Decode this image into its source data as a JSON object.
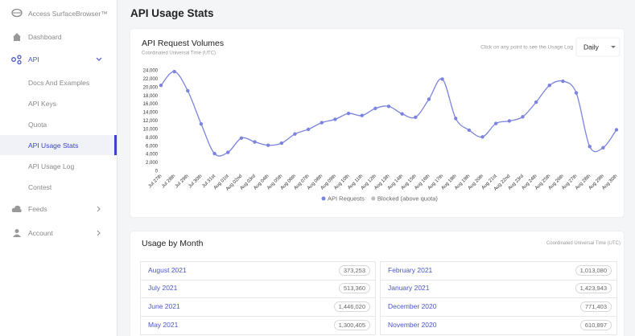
{
  "sidebar": {
    "brand": "Access SurfaceBrowser™",
    "items": [
      "Dashboard",
      "API",
      "Docs And Examples",
      "API Keys",
      "Quota",
      "API Usage Stats",
      "API Usage Log",
      "Contest",
      "Feeds",
      "Account"
    ]
  },
  "header": {
    "title": "API Usage Stats"
  },
  "controls": {
    "hint": "Click on any point to see the Usage Log",
    "select": "Daily"
  },
  "chart_data": {
    "type": "line",
    "title": "API Request Volumes",
    "subtitle": "Coordinated Universal Time (UTC)",
    "categories": [
      "Jul 27th",
      "Jul 28th",
      "Jul 29th",
      "Jul 30th",
      "Jul 31st",
      "Aug 01st",
      "Aug 02nd",
      "Aug 03rd",
      "Aug 04th",
      "Aug 05th",
      "Aug 06th",
      "Aug 07th",
      "Aug 08th",
      "Aug 09th",
      "Aug 10th",
      "Aug 11th",
      "Aug 12th",
      "Aug 13th",
      "Aug 14th",
      "Aug 15th",
      "Aug 16th",
      "Aug 17th",
      "Aug 18th",
      "Aug 19th",
      "Aug 20th",
      "Aug 21st",
      "Aug 22nd",
      "Aug 23rd",
      "Aug 24th",
      "Aug 25th",
      "Aug 26th",
      "Aug 27th",
      "Aug 28th",
      "Aug 29th",
      "Aug 30th"
    ],
    "series": [
      {
        "name": "API Requests",
        "color": "#7b83de",
        "values": [
          20500,
          23800,
          19200,
          11300,
          4200,
          4500,
          7900,
          7000,
          6200,
          6700,
          8900,
          10000,
          11600,
          12400,
          13800,
          13300,
          15000,
          15500,
          13700,
          12900,
          17200,
          22000,
          12600,
          9800,
          8200,
          11400,
          12000,
          13000,
          16500,
          20500,
          21500,
          18700,
          5900,
          5600,
          9900
        ]
      },
      {
        "name": "Blocked (above quota)",
        "color": "#bdbdbd"
      }
    ],
    "ylim": [
      0,
      24000
    ],
    "yticks": [
      0,
      {
        "value": 2000,
        "label": "2,000"
      },
      {
        "value": 4000,
        "label": "4,000"
      },
      {
        "value": 6000,
        "label": "6,000"
      },
      {
        "value": 8000,
        "label": "8,000"
      },
      {
        "value": 10000,
        "label": "10,000"
      },
      {
        "value": 12000,
        "label": "12,000"
      },
      {
        "value": 14000,
        "label": "14,000"
      },
      {
        "value": 16000,
        "label": "16,000"
      },
      {
        "value": 18000,
        "label": "18,000"
      },
      {
        "value": 20000,
        "label": "20,000"
      },
      {
        "value": 22000,
        "label": "22,000"
      },
      {
        "value": 24000,
        "label": "24,000"
      }
    ]
  },
  "usage": {
    "title": "Usage by Month",
    "timezone": "Coordinated Universal Time (UTC)",
    "columns": [
      [
        {
          "month": "August 2021",
          "value": "373,253"
        },
        {
          "month": "July 2021",
          "value": "513,360"
        },
        {
          "month": "June 2021",
          "value": "1,446,020"
        },
        {
          "month": "May 2021",
          "value": "1,300,405"
        }
      ],
      [
        {
          "month": "February 2021",
          "value": "1,013,080"
        },
        {
          "month": "January 2021",
          "value": "1,423,943"
        },
        {
          "month": "December 2020",
          "value": "771,403"
        },
        {
          "month": "November 2020",
          "value": "610,897"
        }
      ]
    ]
  }
}
